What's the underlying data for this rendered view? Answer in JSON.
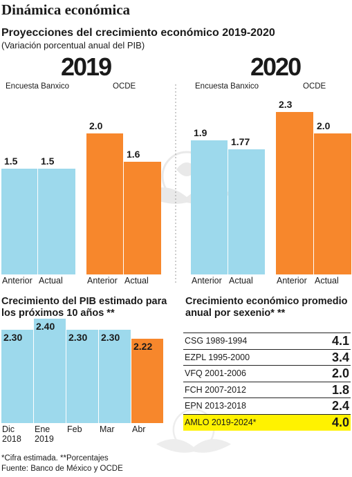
{
  "header": {
    "title": "Dinámica económica",
    "subtitle": "Proyecciones del crecimiento económico 2019-2020",
    "note": "(Variación porcentual anual del PIB)"
  },
  "chart_data": [
    {
      "type": "bar",
      "title": "2019",
      "groups": [
        "Encuesta Banxico",
        "OCDE"
      ],
      "categories": [
        "Anterior",
        "Actual",
        "Anterior",
        "Actual"
      ],
      "values": [
        1.5,
        1.5,
        2.0,
        1.6
      ],
      "value_labels": [
        "1.5",
        "1.5",
        "2.0",
        "1.6"
      ],
      "colors": [
        "#9dd9ec",
        "#9dd9ec",
        "#f7872c",
        "#f7872c"
      ],
      "ylim": [
        0,
        3.0
      ]
    },
    {
      "type": "bar",
      "title": "2020",
      "groups": [
        "Encuesta Banxico",
        "OCDE"
      ],
      "categories": [
        "Anterior",
        "Actual",
        "Anterior",
        "Actual"
      ],
      "values": [
        1.9,
        1.77,
        2.3,
        2.0
      ],
      "value_labels": [
        "1.9",
        "1.77",
        "2.3",
        "2.0"
      ],
      "colors": [
        "#9dd9ec",
        "#9dd9ec",
        "#f7872c",
        "#f7872c"
      ],
      "ylim": [
        0,
        3.0
      ]
    },
    {
      "type": "bar",
      "title": "Crecimiento del PIB estimado para los próximos 10 años **",
      "categories": [
        [
          "Dic",
          "2018"
        ],
        [
          "Ene",
          "2019"
        ],
        [
          "Feb",
          ""
        ],
        [
          "Mar",
          ""
        ],
        [
          "Abr",
          ""
        ]
      ],
      "values": [
        2.3,
        2.4,
        2.3,
        2.3,
        2.22
      ],
      "value_labels": [
        "2.30",
        "2.40",
        "2.30",
        "2.30",
        "2.22"
      ],
      "colors": [
        "#9dd9ec",
        "#9dd9ec",
        "#9dd9ec",
        "#9dd9ec",
        "#f7872c"
      ]
    },
    {
      "type": "table",
      "title": "Crecimiento económico promedio anual por sexenio* **",
      "rows": [
        {
          "label": "CSG 1989-1994",
          "value": "4.1"
        },
        {
          "label": "EZPL 1995-2000",
          "value": "3.4"
        },
        {
          "label": "VFQ 2001-2006",
          "value": "2.0"
        },
        {
          "label": "FCH 2007-2012",
          "value": "1.8"
        },
        {
          "label": "EPN 2013-2018",
          "value": "2.4"
        },
        {
          "label": "AMLO 2019-2024*",
          "value": "4.0",
          "highlight": "#fff200"
        }
      ]
    }
  ],
  "footer": {
    "note": "*Cifra estimada. **Porcentajes",
    "source": "Fuente: Banco de México y OCDE"
  }
}
